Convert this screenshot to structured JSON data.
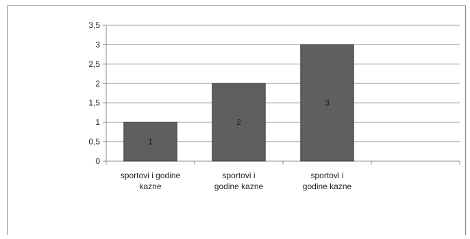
{
  "chart_data": {
    "type": "bar",
    "categories": [
      "sportovi i godine kazne",
      "sportovi i godine kazne",
      "sportovi i godine kazne"
    ],
    "category_lines": [
      [
        "sportovi i godine",
        "kazne"
      ],
      [
        "sportovi i",
        "godine kazne"
      ],
      [
        "sportovi i",
        "godine kazne"
      ]
    ],
    "values": [
      1,
      2,
      3
    ],
    "data_labels": [
      "1",
      "2",
      "3"
    ],
    "y_tick_labels": [
      "0",
      "0,5",
      "1",
      "1,5",
      "2",
      "2,5",
      "3",
      "3,5"
    ],
    "ylim": [
      0,
      3.5
    ],
    "ystep": 0.5,
    "x_slots": 4,
    "grid": true,
    "legend": "none",
    "title": "",
    "xlabel": "",
    "ylabel": "",
    "colors": {
      "bar": "#5f5f5f",
      "bar_border": "#3c3c3c",
      "grid": "#a6a6a6",
      "axis": "#8c8c8c",
      "text": "#222222",
      "label_on_bar": "#1a1a1a"
    }
  }
}
